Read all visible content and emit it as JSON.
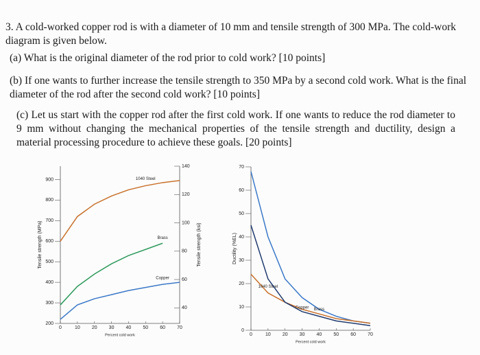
{
  "problem": {
    "intro": "3. A cold-worked copper rod is with a diameter of 10 mm and tensile strength of 300 MPa. The cold-work diagram is given below.",
    "parts": [
      "(a) What is the original diameter of the rod prior to cold work? [10 points]",
      "(b) If one wants to further increase the tensile strength to 350 MPa by a second cold work. What is the final diameter of the rod after the second cold work? [10 points]",
      "(c) Let us start with the copper rod after the first cold work. If one wants to reduce the rod diameter to 9 mm without changing the mechanical properties of the tensile strength and ductility, design a material processing procedure to achieve these goals. [20 points]"
    ]
  },
  "chart_data": [
    {
      "type": "line",
      "x_label": "Percent cold work",
      "y_label": "Tensile strength (MPa)",
      "y2_label": "Tensile strength (ksi)",
      "x": [
        0,
        10,
        20,
        30,
        40,
        50,
        60,
        70
      ],
      "xlim": [
        0,
        70
      ],
      "xticks": [
        0,
        10,
        20,
        30,
        40,
        50,
        60,
        70
      ],
      "ylim": [
        200,
        965
      ],
      "yticks": [
        200,
        300,
        400,
        500,
        600,
        700,
        800,
        900
      ],
      "y2lim": [
        29,
        140
      ],
      "y2ticks": [
        40,
        60,
        80,
        100,
        120,
        140
      ],
      "series": [
        {
          "name": "1040 Steel",
          "color": "#c8702a",
          "values": [
            600,
            720,
            780,
            820,
            850,
            870,
            885,
            895
          ]
        },
        {
          "name": "Brass",
          "color": "#2e9a5c",
          "values": [
            290,
            380,
            440,
            490,
            530,
            560,
            590,
            null
          ]
        },
        {
          "name": "Copper",
          "color": "#3a78c8",
          "values": [
            220,
            290,
            320,
            340,
            360,
            375,
            390,
            400
          ]
        }
      ]
    },
    {
      "type": "line",
      "x_label": "Percent cold work",
      "y_label": "Ductility (%EL)",
      "x": [
        0,
        10,
        20,
        30,
        40,
        50,
        60,
        70
      ],
      "xlim": [
        0,
        70
      ],
      "xticks": [
        0,
        10,
        20,
        30,
        40,
        50,
        60,
        70
      ],
      "ylim": [
        0,
        70
      ],
      "yticks": [
        0,
        10,
        20,
        30,
        40,
        50,
        60,
        70
      ],
      "series": [
        {
          "name": "Brass",
          "color": "#3a78c8",
          "values": [
            68,
            40,
            22,
            14,
            9,
            6,
            4,
            3
          ]
        },
        {
          "name": "1040 Steel",
          "color": "#c8702a",
          "values": [
            24,
            16,
            12,
            9,
            7,
            5,
            4,
            3
          ]
        },
        {
          "name": "Copper",
          "color": "#1f3a6e",
          "values": [
            45,
            22,
            12,
            8,
            6,
            4,
            3,
            2
          ]
        }
      ]
    }
  ]
}
